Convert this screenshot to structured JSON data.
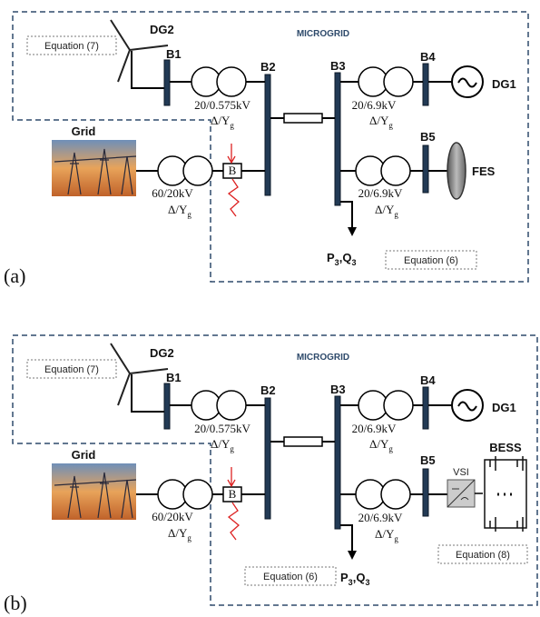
{
  "panels": [
    {
      "label": "(a)",
      "region": "MICROGRID",
      "dg2": "DG2",
      "equation_7": "Equation (7)",
      "buses": [
        "B1",
        "B2",
        "B3",
        "B4",
        "B5"
      ],
      "dg1": "DG1",
      "grid": "Grid",
      "breaker": "B",
      "transformers": [
        {
          "rating": "20/0.575kV",
          "connection": "Δ/Y",
          "subscript": "g"
        },
        {
          "rating": "20/6.9kV",
          "connection": "Δ/Y",
          "subscript": "g"
        },
        {
          "rating": "60/20kV",
          "connection": "Δ/Y",
          "subscript": "g"
        },
        {
          "rating": "20/6.9kV",
          "connection": "Δ/Y",
          "subscript": "g"
        }
      ],
      "load": {
        "p": "P",
        "p_sub": "3",
        "comma": ",",
        "q": "Q",
        "q_sub": "3"
      },
      "equation_6": "Equation (6)",
      "storage": {
        "name": "FES"
      }
    },
    {
      "label": "(b)",
      "region": "MICROGRID",
      "dg2": "DG2",
      "equation_7": "Equation (7)",
      "buses": [
        "B1",
        "B2",
        "B3",
        "B4",
        "B5"
      ],
      "dg1": "DG1",
      "grid": "Grid",
      "breaker": "B",
      "transformers": [
        {
          "rating": "20/0.575kV",
          "connection": "Δ/Y",
          "subscript": "g"
        },
        {
          "rating": "20/6.9kV",
          "connection": "Δ/Y",
          "subscript": "g"
        },
        {
          "rating": "60/20kV",
          "connection": "Δ/Y",
          "subscript": "g"
        },
        {
          "rating": "20/6.9kV",
          "connection": "Δ/Y",
          "subscript": "g"
        }
      ],
      "load": {
        "p": "P",
        "p_sub": "3",
        "comma": ",",
        "q": "Q",
        "q_sub": "3"
      },
      "equation_6": "Equation (6)",
      "storage": {
        "name": "BESS",
        "converter": "VSI",
        "equation_8": "Equation (8)"
      }
    }
  ]
}
